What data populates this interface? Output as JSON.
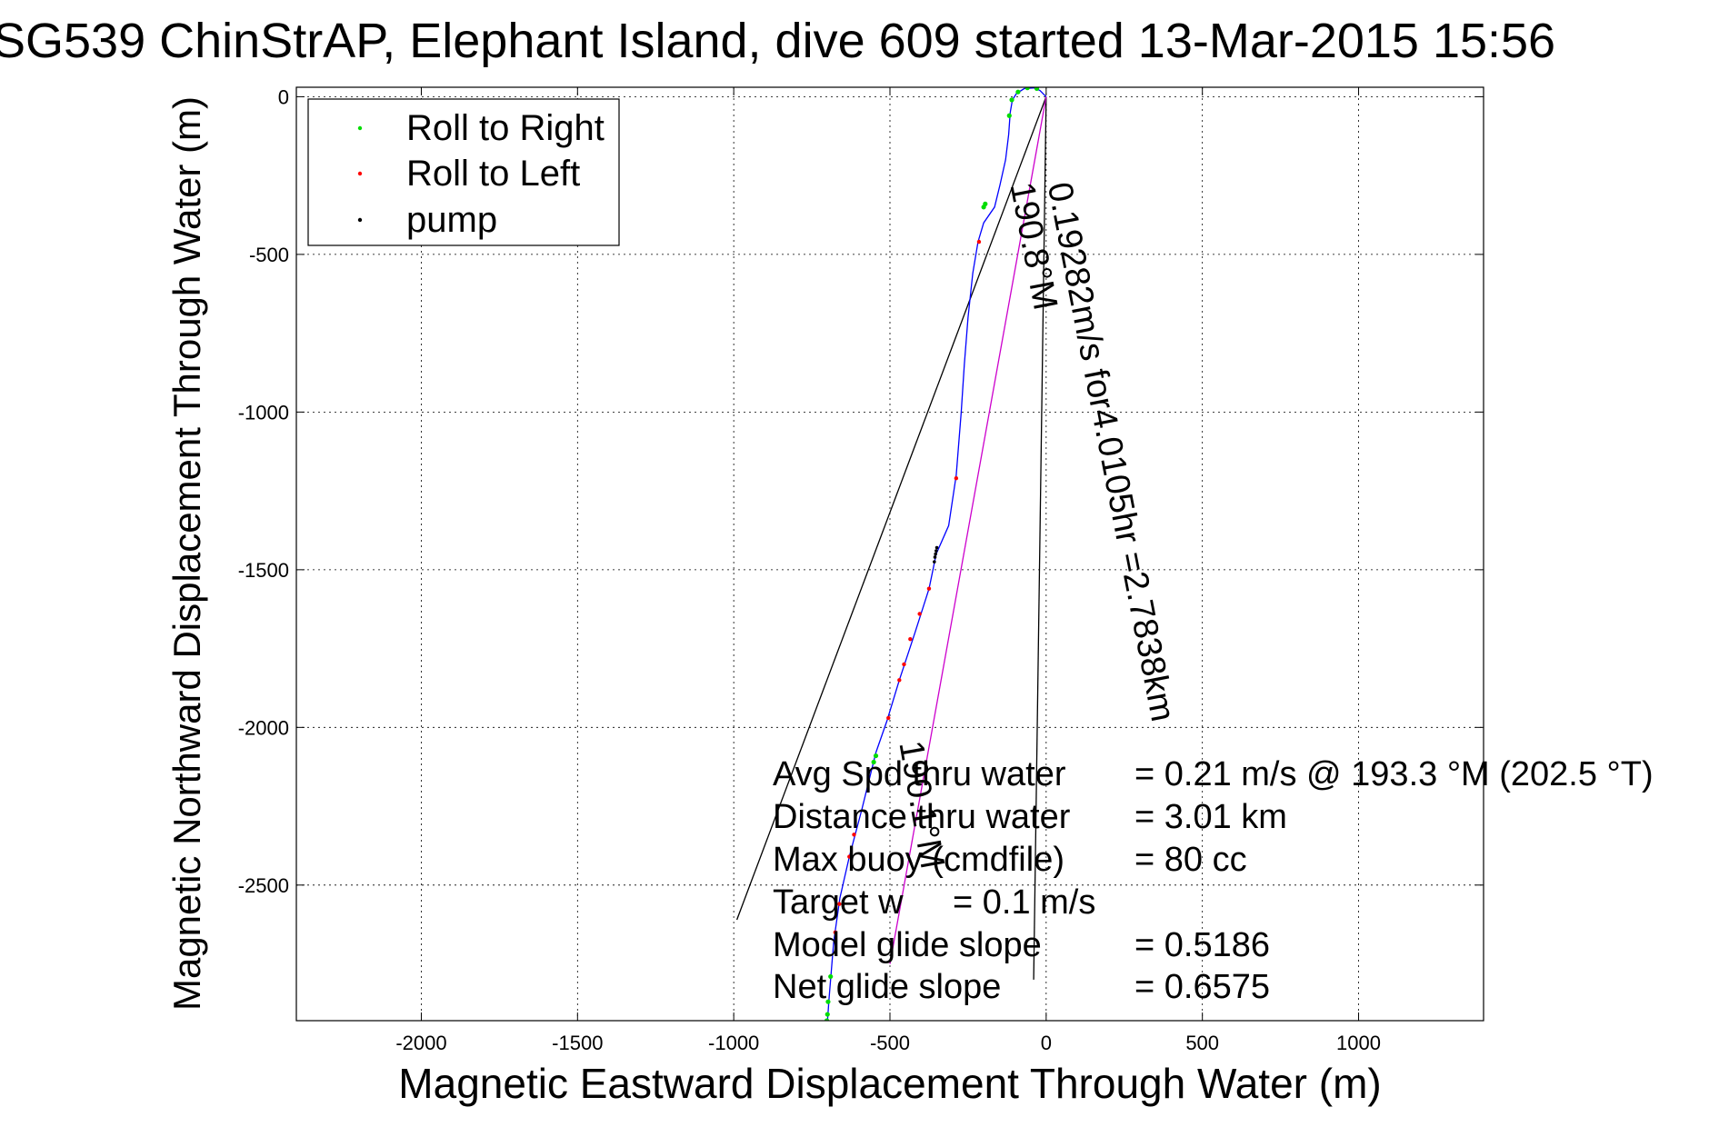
{
  "chart_data": {
    "type": "line",
    "title": "SG539 ChinStrAP, Elephant Island, dive 609 started 13-Mar-2015 15:56",
    "xlabel": "Magnetic Eastward Displacement Through Water (m)",
    "ylabel": "Magnetic Northward Displacement Through Water (m)",
    "xlim": [
      -2400,
      1400
    ],
    "ylim": [
      -2930,
      30
    ],
    "x_ticks": [
      -2000,
      -1500,
      -1000,
      -500,
      0,
      500,
      1000
    ],
    "y_ticks": [
      0,
      -500,
      -1000,
      -1500,
      -2000,
      -2500
    ],
    "x_tick_labels": [
      "-2000",
      "-1500",
      "-1000",
      "-500",
      "0",
      "500",
      "1000"
    ],
    "y_tick_labels": [
      "0",
      "-500",
      "-1000",
      "-1500",
      "-2000",
      "-2500"
    ],
    "grid": true,
    "legend_position": "top-left",
    "legend": [
      {
        "label": "Roll to Right",
        "color": "#00dd00"
      },
      {
        "label": "Roll to Left",
        "color": "#ff0000"
      },
      {
        "label": "pump",
        "color": "#000000"
      }
    ],
    "track_color": "#0000ff",
    "track": [
      [
        0,
        0
      ],
      [
        -20,
        20
      ],
      [
        -40,
        28
      ],
      [
        -70,
        26
      ],
      [
        -95,
        10
      ],
      [
        -108,
        -10
      ],
      [
        -115,
        -50
      ],
      [
        -120,
        -120
      ],
      [
        -130,
        -200
      ],
      [
        -148,
        -280
      ],
      [
        -165,
        -350
      ],
      [
        -200,
        -400
      ],
      [
        -218,
        -460
      ],
      [
        -235,
        -560
      ],
      [
        -250,
        -700
      ],
      [
        -262,
        -850
      ],
      [
        -272,
        -1000
      ],
      [
        -288,
        -1200
      ],
      [
        -312,
        -1360
      ],
      [
        -352,
        -1450
      ],
      [
        -375,
        -1560
      ],
      [
        -420,
        -1700
      ],
      [
        -470,
        -1850
      ],
      [
        -510,
        -1980
      ],
      [
        -545,
        -2080
      ],
      [
        -590,
        -2260
      ],
      [
        -630,
        -2410
      ],
      [
        -660,
        -2540
      ],
      [
        -680,
        -2680
      ],
      [
        -690,
        -2800
      ],
      [
        -695,
        -2860
      ],
      [
        -700,
        -2930
      ]
    ],
    "roll_right_points": [
      [
        -30,
        26
      ],
      [
        -60,
        28
      ],
      [
        -90,
        15
      ],
      [
        -110,
        -10
      ],
      [
        -118,
        -60
      ],
      [
        -195,
        -340
      ],
      [
        -200,
        -350
      ],
      [
        -545,
        -2090
      ],
      [
        -552,
        -2110
      ],
      [
        -690,
        -2790
      ],
      [
        -698,
        -2870
      ],
      [
        -700,
        -2910
      ],
      [
        -702,
        -2930
      ]
    ],
    "roll_left_points": [
      [
        -215,
        -460
      ],
      [
        -288,
        -1210
      ],
      [
        -375,
        -1560
      ],
      [
        -405,
        -1640
      ],
      [
        -435,
        -1720
      ],
      [
        -455,
        -1800
      ],
      [
        -470,
        -1850
      ],
      [
        -505,
        -1970
      ],
      [
        -615,
        -2340
      ],
      [
        -630,
        -2410
      ],
      [
        -662,
        -2560
      ],
      [
        -675,
        -2650
      ]
    ],
    "pump_points": [
      [
        -350,
        -1430
      ],
      [
        -352,
        -1440
      ],
      [
        -354,
        -1450
      ],
      [
        -356,
        -1460
      ],
      [
        -358,
        -1475
      ]
    ],
    "lines": [
      {
        "color": "#000000",
        "points": [
          [
            0,
            0
          ],
          [
            -990,
            -2610
          ]
        ]
      },
      {
        "color": "#000000",
        "points": [
          [
            0,
            0
          ],
          [
            -40,
            -2800
          ]
        ]
      },
      {
        "color": "#cc00cc",
        "points": [
          [
            0,
            0
          ],
          [
            -500,
            -2750
          ]
        ]
      }
    ],
    "annotations": [
      {
        "text": "0.19282m/s for4.0105hr =2.7838km",
        "x": 5,
        "y": -280,
        "angle": 79
      },
      {
        "text": "190.8°M",
        "x": -115,
        "y": -280,
        "angle": 79
      },
      {
        "text": "190.1°M",
        "x": -470,
        "y": -2050,
        "angle": 80
      }
    ],
    "stats": [
      {
        "label": "Avg Spd thru water",
        "value": "=  0.21 m/s @ 193.3 °M (202.5 °T)"
      },
      {
        "label": "Distance thru water",
        "value": "=  3.01 km"
      },
      {
        "label": "Max buoy (cmdfile)",
        "value": "= 80 cc"
      },
      {
        "label": "Target w",
        "value": "= 0.1 m/s"
      },
      {
        "label": "Model glide slope",
        "value": "= 0.5186"
      },
      {
        "label": "Net glide slope",
        "value": "= 0.6575"
      }
    ]
  }
}
